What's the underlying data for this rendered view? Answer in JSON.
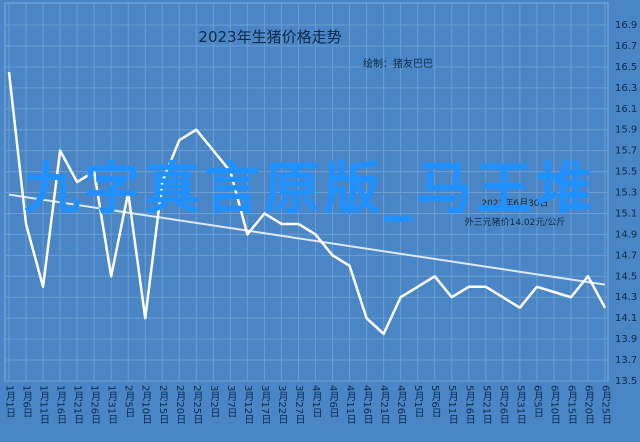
{
  "chart_data": {
    "type": "line",
    "title": "2023年生猪价格走势",
    "subtitle": "绘制：猪友巴巴",
    "annotation": [
      "2023年6月30日",
      "外三元猪价14.02元/公斤"
    ],
    "overlay_text": "九字真言原版_马王堆",
    "categories": [
      "1月1日",
      "1月6日",
      "1月11日",
      "1月16日",
      "1月21日",
      "1月26日",
      "1月31日",
      "2月5日",
      "2月10日",
      "2月15日",
      "2月20日",
      "2月25日",
      "3月2日",
      "3月7日",
      "3月12日",
      "3月17日",
      "3月22日",
      "3月27日",
      "4月1日",
      "4月6日",
      "4月11日",
      "4月16日",
      "4月21日",
      "4月26日",
      "5月1日",
      "5月6日",
      "5月11日",
      "5月16日",
      "5月21日",
      "5月26日",
      "5月31日",
      "6月5日",
      "6月10日",
      "6月15日",
      "6月20日",
      "6月25日"
    ],
    "series": [
      {
        "color": "#ffffff",
        "values": [
          16.45,
          15.0,
          14.4,
          15.7,
          15.4,
          15.5,
          14.5,
          15.3,
          14.1,
          15.4,
          15.8,
          15.9,
          15.7,
          15.5,
          14.9,
          15.1,
          15.0,
          15.0,
          14.9,
          14.7,
          14.6,
          14.1,
          13.95,
          14.3,
          14.4,
          14.5,
          14.3,
          14.4,
          14.4,
          14.3,
          14.2,
          14.4,
          14.35,
          14.3,
          14.5,
          14.2
        ]
      }
    ],
    "trend": {
      "color": "#dce9f7",
      "values": [
        15.28,
        14.42
      ]
    },
    "ylim": [
      13.5,
      16.9
    ],
    "yticks": [
      13.5,
      13.7,
      13.9,
      14.1,
      14.3,
      14.5,
      14.7,
      14.9,
      15.1,
      15.3,
      15.5,
      15.7,
      15.9,
      16.1,
      16.3,
      16.5,
      16.7,
      16.9
    ],
    "grid": true
  }
}
